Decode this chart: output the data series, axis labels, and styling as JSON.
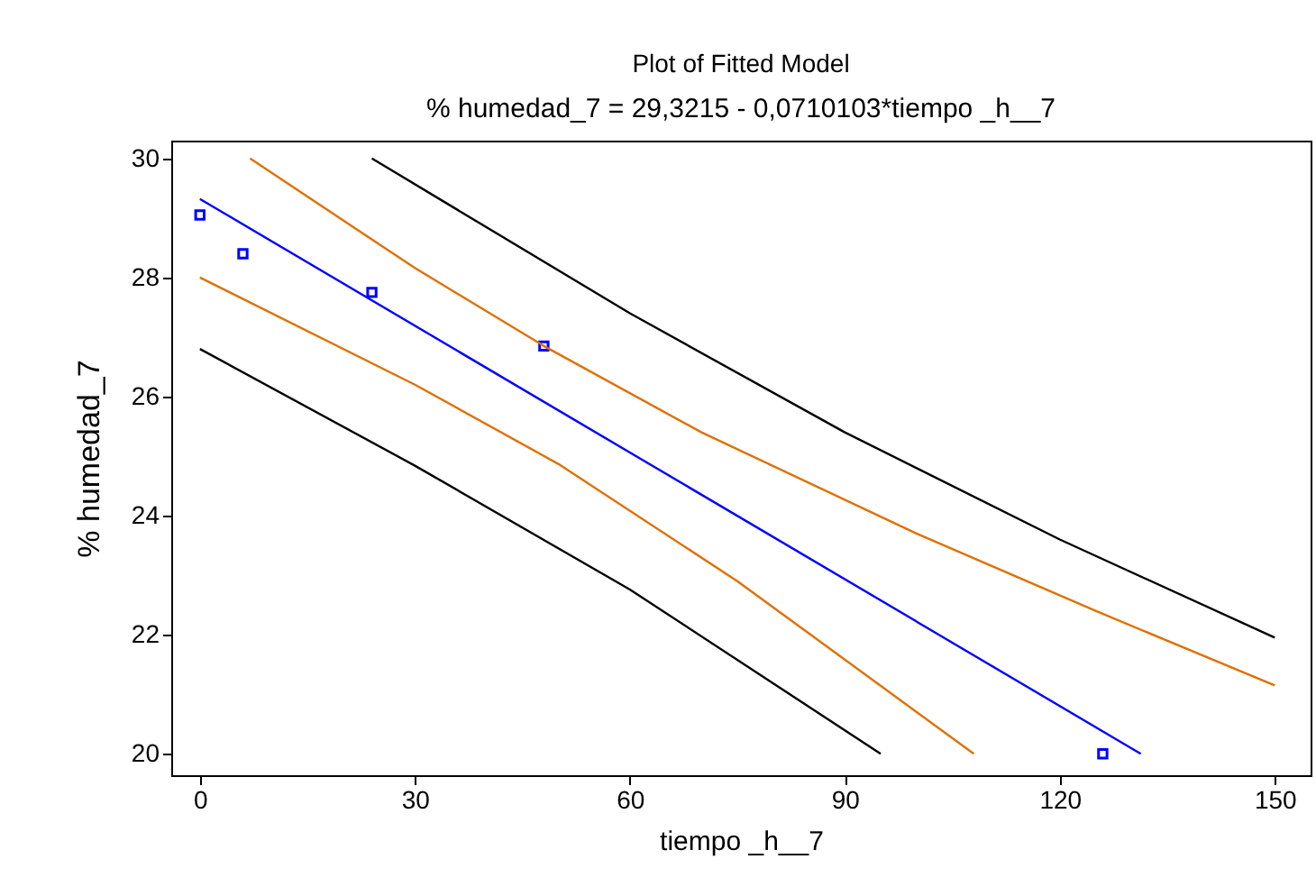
{
  "chart_data": {
    "type": "line",
    "title": "Plot of Fitted Model",
    "subtitle": "% humedad_7 = 29,3215 - 0,0710103*tiempo _h__7",
    "xlabel": "tiempo _h__7",
    "ylabel": "% humedad_7",
    "xlim": [
      -4,
      155
    ],
    "ylim": [
      19.64,
      30.3
    ],
    "xticks": [
      0,
      30,
      60,
      90,
      120,
      150
    ],
    "yticks": [
      20,
      22,
      24,
      26,
      28,
      30
    ],
    "grid": false,
    "line_style": "solid",
    "series": [
      {
        "type": "scatter",
        "marker": "square",
        "color": "#0000ff",
        "x": [
          0,
          6,
          24,
          48,
          126
        ],
        "values": [
          29.05,
          28.4,
          27.75,
          26.85,
          20.0
        ]
      },
      {
        "type": "line",
        "color": "#0000ff",
        "x": [
          0,
          131.3
        ],
        "values": [
          29.32,
          20.0
        ]
      },
      {
        "type": "line",
        "color": "#e07000",
        "x": [
          7,
          30,
          48,
          70,
          100,
          125,
          150
        ],
        "values": [
          30.0,
          28.16,
          26.85,
          25.4,
          23.7,
          22.4,
          21.15
        ]
      },
      {
        "type": "line",
        "color": "#e07000",
        "x": [
          0,
          30,
          50,
          75,
          108
        ],
        "values": [
          28.0,
          26.2,
          24.87,
          22.9,
          20.0
        ]
      },
      {
        "type": "line",
        "color": "#000000",
        "x": [
          24,
          60,
          90,
          120,
          150
        ],
        "values": [
          30.0,
          27.4,
          25.4,
          23.6,
          21.95
        ]
      },
      {
        "type": "line",
        "color": "#000000",
        "x": [
          0,
          30,
          60,
          95
        ],
        "values": [
          26.8,
          24.84,
          22.76,
          20.0
        ]
      }
    ]
  }
}
